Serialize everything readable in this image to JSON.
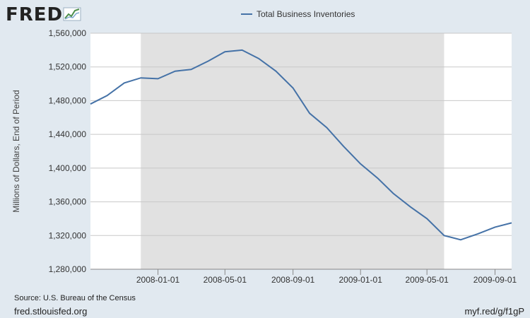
{
  "logo": {
    "text": "FRED",
    "icon": "line-chart-icon"
  },
  "footer": {
    "source": "Source: U.S. Bureau of the Census",
    "site": "fred.stlouisfed.org",
    "short_url": "myf.red/g/f1gP"
  },
  "colors": {
    "line": "#4572a7",
    "recession": "#e1e1e1",
    "plot_bg": "#ffffff",
    "page_bg": "#e1e9f0",
    "grid": "#c8c8c8"
  },
  "chart_data": {
    "type": "line",
    "ylabel": "Millions of Dollars, End of Period",
    "ylim": [
      1280000,
      1560000
    ],
    "yticks": [
      1280000,
      1320000,
      1360000,
      1400000,
      1440000,
      1480000,
      1520000,
      1560000
    ],
    "ytick_labels": [
      "1,280,000",
      "1,320,000",
      "1,360,000",
      "1,400,000",
      "1,440,000",
      "1,480,000",
      "1,520,000",
      "1,560,000"
    ],
    "xlim": [
      "2007-09-01",
      "2009-10-01"
    ],
    "xticks": [
      "2008-01-01",
      "2008-05-01",
      "2008-09-01",
      "2009-01-01",
      "2009-05-01",
      "2009-09-01"
    ],
    "recession": {
      "start": "2007-12-01",
      "end": "2009-06-01"
    },
    "legend": {
      "position": "top-center"
    },
    "grid": true,
    "series": [
      {
        "name": "Total Business Inventories",
        "x": [
          "2007-09-01",
          "2007-10-01",
          "2007-11-01",
          "2007-12-01",
          "2008-01-01",
          "2008-02-01",
          "2008-03-01",
          "2008-04-01",
          "2008-05-01",
          "2008-06-01",
          "2008-07-01",
          "2008-08-01",
          "2008-09-01",
          "2008-10-01",
          "2008-11-01",
          "2008-12-01",
          "2009-01-01",
          "2009-02-01",
          "2009-03-01",
          "2009-04-01",
          "2009-05-01",
          "2009-06-01",
          "2009-07-01",
          "2009-08-01",
          "2009-09-01",
          "2009-10-01"
        ],
        "values": [
          1476000,
          1486000,
          1501000,
          1507000,
          1506000,
          1515000,
          1517000,
          1527000,
          1538000,
          1540000,
          1530000,
          1515000,
          1495000,
          1465000,
          1448000,
          1426000,
          1405000,
          1388000,
          1370000,
          1354000,
          1340000,
          1320000,
          1315000,
          1322000,
          1330000,
          1335000
        ]
      }
    ]
  }
}
